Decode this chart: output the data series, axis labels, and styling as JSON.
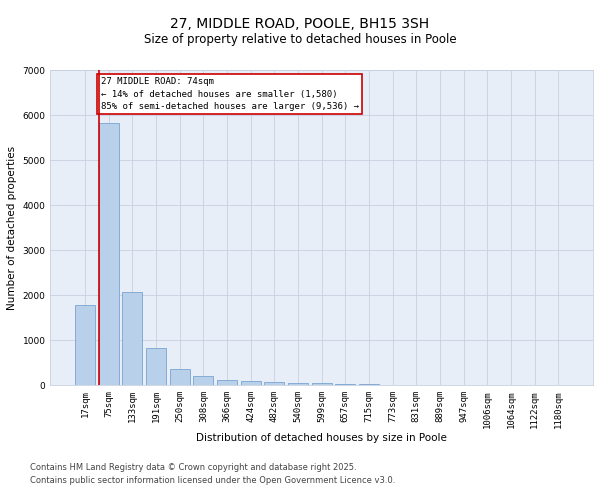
{
  "title": "27, MIDDLE ROAD, POOLE, BH15 3SH",
  "subtitle": "Size of property relative to detached houses in Poole",
  "xlabel": "Distribution of detached houses by size in Poole",
  "ylabel": "Number of detached properties",
  "categories": [
    "17sqm",
    "75sqm",
    "133sqm",
    "191sqm",
    "250sqm",
    "308sqm",
    "366sqm",
    "424sqm",
    "482sqm",
    "540sqm",
    "599sqm",
    "657sqm",
    "715sqm",
    "773sqm",
    "831sqm",
    "889sqm",
    "947sqm",
    "1006sqm",
    "1064sqm",
    "1122sqm",
    "1180sqm"
  ],
  "values": [
    1780,
    5820,
    2080,
    820,
    360,
    200,
    120,
    90,
    75,
    55,
    40,
    25,
    15,
    10,
    7,
    5,
    4,
    3,
    2,
    2,
    1
  ],
  "bar_color": "#b8d0ea",
  "bar_edgecolor": "#6699cc",
  "background_color": "#e8eef8",
  "grid_color": "#c8d0e0",
  "annotation_box_text": "27 MIDDLE ROAD: 74sqm\n← 14% of detached houses are smaller (1,580)\n85% of semi-detached houses are larger (9,536) →",
  "annotation_box_color": "#cc0000",
  "redline_x": 0.575,
  "ylim": [
    0,
    7000
  ],
  "yticks": [
    0,
    1000,
    2000,
    3000,
    4000,
    5000,
    6000,
    7000
  ],
  "footnote1": "Contains HM Land Registry data © Crown copyright and database right 2025.",
  "footnote2": "Contains public sector information licensed under the Open Government Licence v3.0.",
  "title_fontsize": 10,
  "subtitle_fontsize": 8.5,
  "axis_label_fontsize": 7.5,
  "tick_fontsize": 6.5,
  "annotation_fontsize": 6.5,
  "footnote_fontsize": 6
}
